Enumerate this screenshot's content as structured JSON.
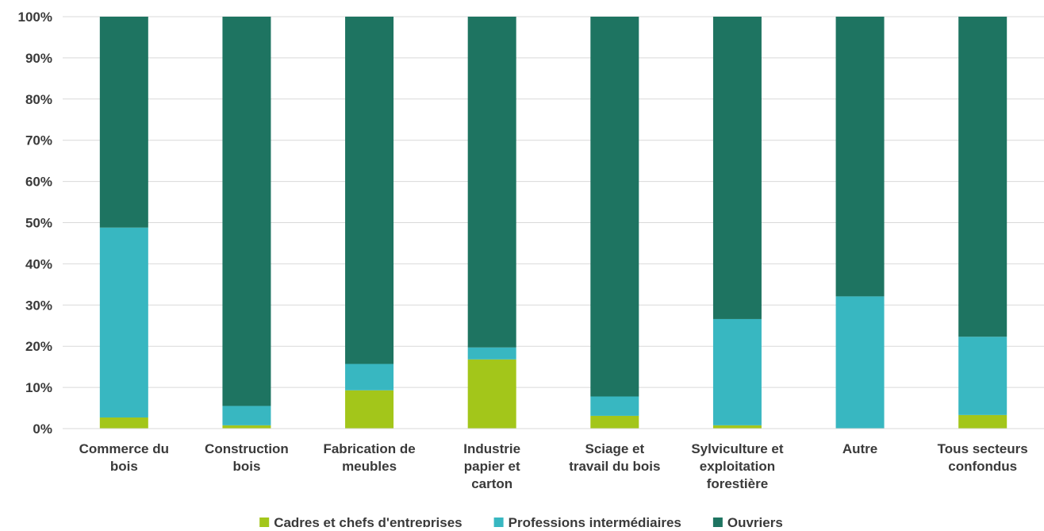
{
  "chart_data": {
    "type": "bar",
    "stacked": true,
    "normalized": true,
    "categories": [
      [
        "Commerce du",
        "bois"
      ],
      [
        "Construction",
        "bois"
      ],
      [
        "Fabrication de",
        "meubles"
      ],
      [
        "Industrie",
        "papier et",
        "carton"
      ],
      [
        "Sciage et",
        "travail du bois"
      ],
      [
        "Sylviculture et",
        "exploitation",
        "forestière"
      ],
      [
        "Autre"
      ],
      [
        "Tous secteurs",
        "confondus"
      ]
    ],
    "series": [
      {
        "name": "Cadres et chefs d'entreprises",
        "color": "#a3c61a",
        "values": [
          2.7,
          0.8,
          9.3,
          16.8,
          3.1,
          0.8,
          0.0,
          3.3
        ]
      },
      {
        "name": "Professions intermédiaires",
        "color": "#38b7c1",
        "values": [
          46.1,
          4.7,
          6.4,
          2.9,
          4.7,
          25.8,
          32.1,
          19.0
        ]
      },
      {
        "name": "Ouvriers",
        "color": "#1e7461",
        "values": [
          51.2,
          94.5,
          84.3,
          80.3,
          92.2,
          73.4,
          67.9,
          77.7
        ]
      }
    ],
    "ylim": [
      0,
      100
    ],
    "yticks": [
      "0%",
      "10%",
      "20%",
      "30%",
      "40%",
      "50%",
      "60%",
      "70%",
      "80%",
      "90%",
      "100%"
    ],
    "grid": true,
    "legend_position": "bottom",
    "title": "",
    "xlabel": "",
    "ylabel": ""
  }
}
